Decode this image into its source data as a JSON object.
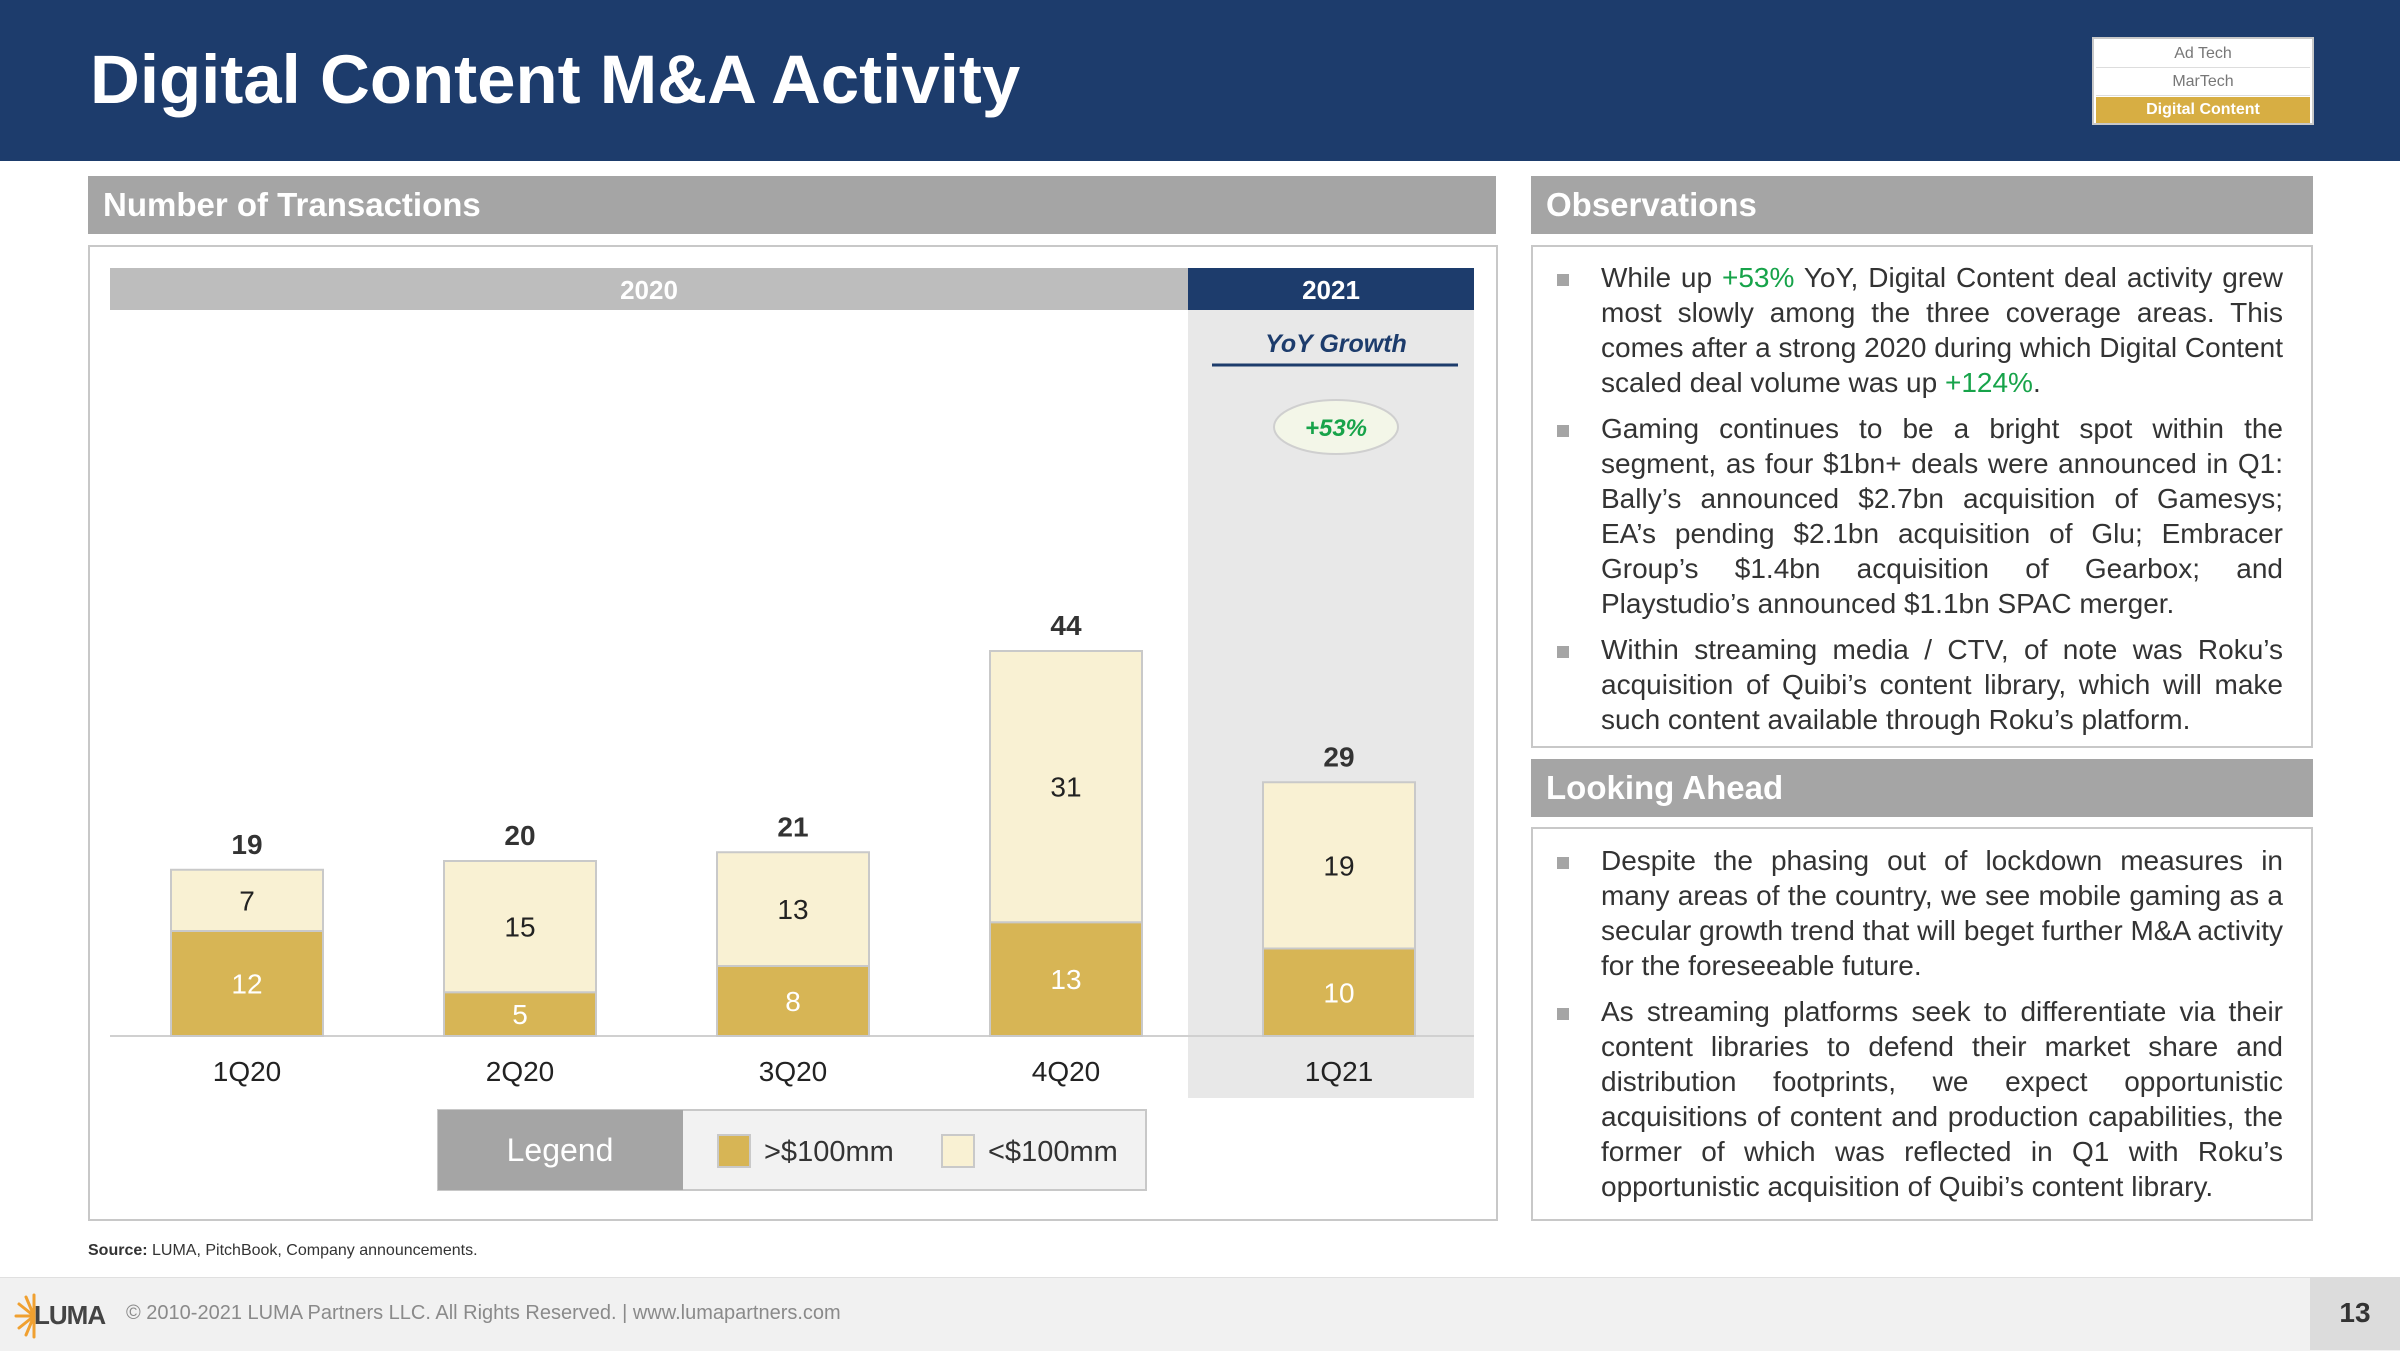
{
  "header": {
    "title": "Digital Content M&A Activity",
    "tags": [
      "Ad Tech",
      "MarTech",
      "Digital Content"
    ],
    "active_tag": "Digital Content"
  },
  "sections": {
    "transactions": "Number of Transactions",
    "observations": "Observations",
    "looking_ahead": "Looking Ahead"
  },
  "colors": {
    "header_bg": "#1d3c6c",
    "gold": "#d7b555",
    "cream": "#f9f1d3",
    "section_gray": "#a5a5a5",
    "growth_green": "#17a34a"
  },
  "chart_data": {
    "type": "bar",
    "stacked": true,
    "period_groups": [
      {
        "label": "2020",
        "categories": [
          "1Q20",
          "2Q20",
          "3Q20",
          "4Q20"
        ]
      },
      {
        "label": "2021",
        "categories": [
          "1Q21"
        ]
      }
    ],
    "categories": [
      "1Q20",
      "2Q20",
      "3Q20",
      "4Q20",
      "1Q21"
    ],
    "series": [
      {
        "name": ">$100mm",
        "values": [
          12,
          5,
          8,
          13,
          10
        ]
      },
      {
        "name": "<$100mm",
        "values": [
          7,
          15,
          13,
          31,
          19
        ]
      }
    ],
    "totals": [
      19,
      20,
      21,
      44,
      29
    ],
    "yoy_growth_label": "YoY Growth",
    "yoy_growth_value": "+53%",
    "legend_title": "Legend",
    "legend_placement": "bottom",
    "grid": false
  },
  "observations": [
    {
      "parts": [
        "While up ",
        "+53%",
        " YoY, Digital Content deal activity grew most slowly among the three coverage areas. This comes after a strong 2020 during which Digital Content scaled deal volume was up ",
        "+124%",
        "."
      ]
    },
    {
      "parts": [
        "Gaming continues to be a bright spot within the segment, as four $1bn+ deals were announced in Q1: Bally’s announced $2.7bn acquisition of Gamesys; EA’s pending $2.1bn acquisition of Glu; Embracer Group’s $1.4bn acquisition of Gearbox; and Playstudio’s announced $1.1bn SPAC merger."
      ]
    },
    {
      "parts": [
        "Within streaming media / CTV, of note was Roku’s acquisition of Quibi’s content library, which will make such content available through Roku’s platform."
      ]
    }
  ],
  "looking_ahead": [
    "Despite the phasing out of lockdown measures in many areas of the country, we see mobile gaming as a secular growth trend that will beget further M&A activity for the foreseeable future.",
    "As streaming platforms seek to differentiate via their content libraries to defend their market share and distribution footprints, we expect opportunistic acquisitions of content and production capabilities, the former of which was reflected in Q1 with Roku’s opportunistic acquisition of Quibi’s content library."
  ],
  "source": {
    "label": "Source:",
    "text": " LUMA, PitchBook, Company announcements."
  },
  "footer": {
    "logo": "LUMA",
    "copyright": "© 2010-2021 LUMA Partners LLC. All Rights Reserved. | www.lumapartners.com",
    "page_number": "13"
  }
}
